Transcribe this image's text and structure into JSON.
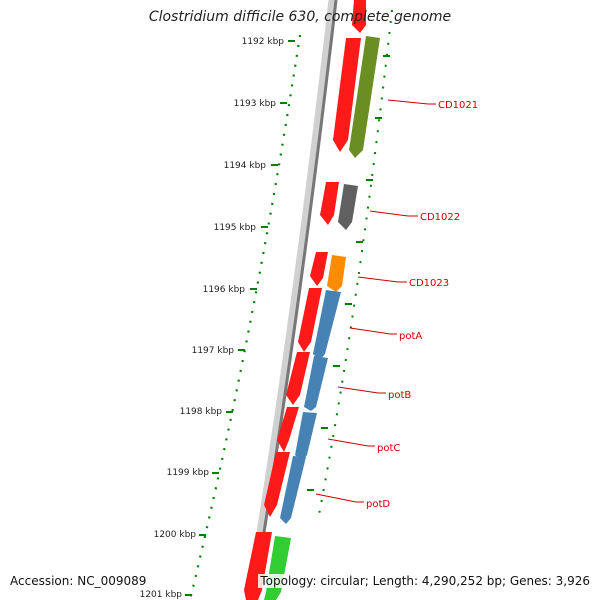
{
  "title": "Clostridium difficile 630, complete genome",
  "footer": {
    "accession": "Accession: NC_009089",
    "summary": "Topology: circular; Length: 4,290,252 bp; Genes: 3,926"
  },
  "axis": {
    "unit": "kbp",
    "ticks": [
      "1192 kbp",
      "1193 kbp",
      "1194 kbp",
      "1195 kbp",
      "1196 kbp",
      "1197 kbp",
      "1198 kbp",
      "1199 kbp",
      "1200 kbp",
      "1201 kbp"
    ]
  },
  "genes": [
    {
      "label": "CD1021",
      "color": "#6b8e23"
    },
    {
      "label": "CD1022",
      "color": "#555555"
    },
    {
      "label": "CD1023",
      "color": "#ff8c00"
    },
    {
      "label": "potA",
      "color": "#4682b4"
    },
    {
      "label": "potB",
      "color": "#4682b4"
    },
    {
      "label": "potC",
      "color": "#4682b4"
    },
    {
      "label": "potD",
      "color": "#4682b4"
    }
  ],
  "colors": {
    "cds_track": "#ff0000",
    "tick_marks": "#008000",
    "backbone": "#888888",
    "label_line": "#cc0000",
    "other_gene": "#32cd32"
  }
}
